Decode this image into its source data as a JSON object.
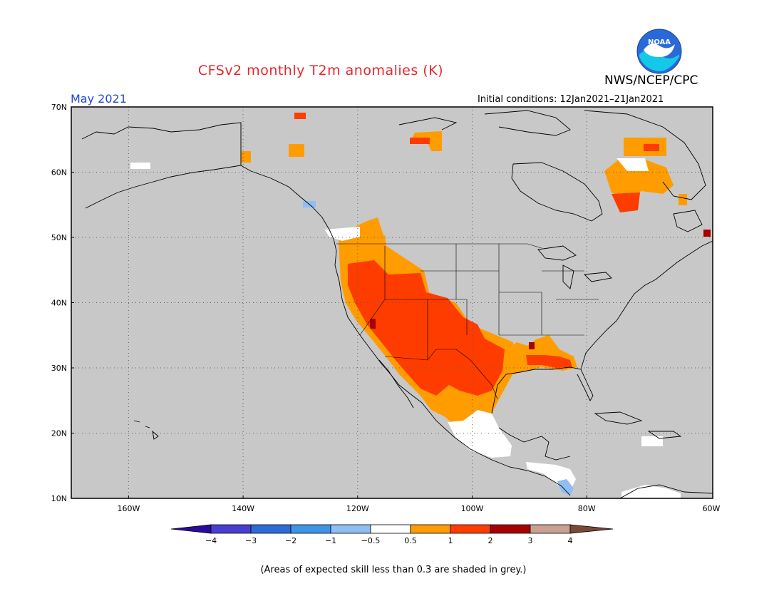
{
  "header": {
    "title": "CFSv2 monthly T2m anomalies (K)",
    "agency": "NWS/NCEP/CPC",
    "month": "May 2021",
    "initial_conditions": "Initial conditions: 12Jan2021–21Jan2021",
    "logo_text": "NOAA"
  },
  "map": {
    "lon_range": [
      -172,
      -60
    ],
    "lat_range": [
      10,
      70
    ],
    "lat_labels": [
      "70N",
      "60N",
      "50N",
      "40N",
      "30N",
      "20N",
      "10N"
    ],
    "lon_labels": [
      "160W",
      "140W",
      "120W",
      "100W",
      "80W",
      "60W"
    ],
    "background_color": "#c8c8c8",
    "grid": "dotted"
  },
  "legend": {
    "tick_labels": [
      "−4",
      "−3",
      "−2",
      "−1",
      "−0.5",
      "0.5",
      "1",
      "2",
      "3",
      "4"
    ],
    "colors": [
      "#2a0a9c",
      "#4a3ed0",
      "#2d6bd8",
      "#3e95e8",
      "#8fbef4",
      "#ffffff",
      "#ff9c00",
      "#ff3c00",
      "#a80000",
      "#caa090",
      "#7a4836"
    ]
  },
  "footnote": "(Areas of expected skill less than 0.3 are shaded in grey.)"
}
